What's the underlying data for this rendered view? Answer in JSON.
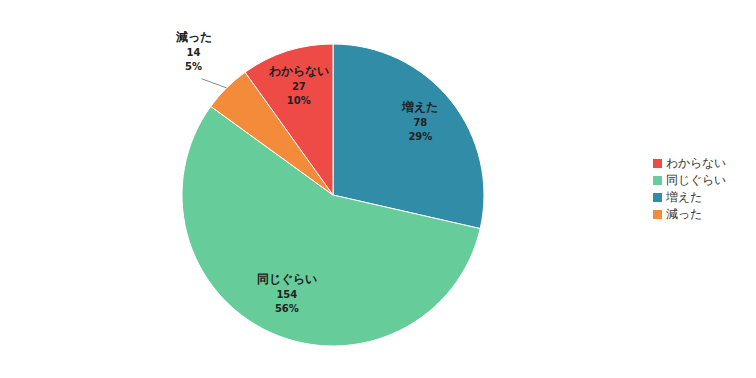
{
  "chart_data": {
    "type": "pie",
    "categories": [
      "増えた",
      "同じぐらい",
      "減った",
      "わからない"
    ],
    "values": [
      78,
      154,
      14,
      27
    ],
    "percents": [
      29,
      56,
      5,
      10
    ],
    "percent_labels": [
      "29%",
      "56%",
      "5%",
      "10%"
    ],
    "colors": [
      "#318ca7",
      "#66cc99",
      "#f38b3a",
      "#ee4b47"
    ],
    "data_labels": true,
    "legend": "right"
  }
}
